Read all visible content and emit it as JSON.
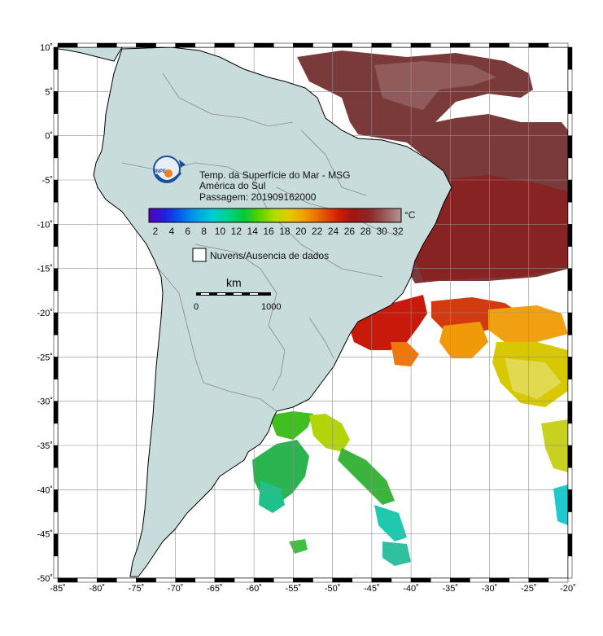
{
  "title": {
    "line1": "Temp. da Superfície do Mar - MSG",
    "line2": "América do Sul",
    "line3": "Passagem: 201909162000"
  },
  "logo": {
    "text": "INPE"
  },
  "colorbar": {
    "unit": "°C",
    "ticks": [
      "2",
      "4",
      "6",
      "8",
      "10",
      "12",
      "14",
      "16",
      "18",
      "20",
      "22",
      "24",
      "26",
      "28",
      "30",
      "32"
    ],
    "colors": [
      "#5a00b4",
      "#1f1fe0",
      "#0060f0",
      "#00a0e6",
      "#00cdd2",
      "#00d28c",
      "#00c83c",
      "#5ad200",
      "#b4dc00",
      "#e6c800",
      "#f09600",
      "#e65a00",
      "#d21e00",
      "#a01414",
      "#8c2828",
      "#9c5a5a",
      "#b49696"
    ]
  },
  "no_data_legend": "Nuvens/Ausencia de dados",
  "scale_bar": {
    "label": "km",
    "start": "0",
    "end": "1000"
  },
  "axes": {
    "lon_labels": [
      "-85˚",
      "-80˚",
      "-75˚",
      "-70˚",
      "-65˚",
      "-60˚",
      "-55˚",
      "-50˚",
      "-45˚",
      "-40˚",
      "-35˚",
      "-30˚",
      "-25˚",
      "-20˚"
    ],
    "lat_labels": [
      "10˚",
      "5˚",
      "0˚",
      "-5˚",
      "-10˚",
      "-15˚",
      "-20˚",
      "-25˚",
      "-30˚",
      "-35˚",
      "-40˚",
      "-45˚",
      "-50˚"
    ],
    "lon_range": [
      -85,
      -20
    ],
    "lat_range": [
      -50,
      10
    ]
  }
}
